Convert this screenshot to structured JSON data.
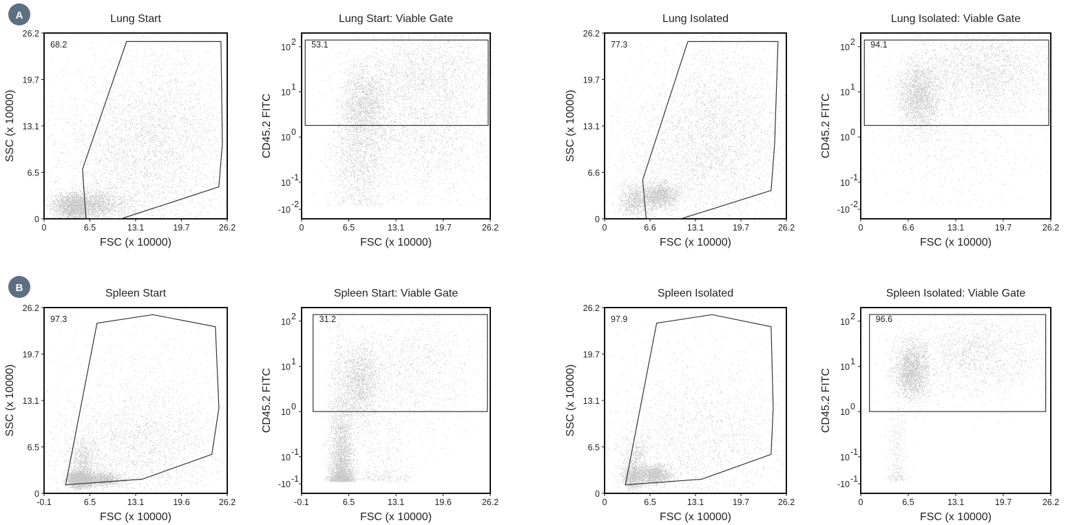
{
  "panel_labels": [
    "A",
    "B"
  ],
  "colors": {
    "badge": "#5d7081",
    "axis": "#111111",
    "gate": "#333333",
    "dots": "#000000"
  },
  "chart_data": [
    {
      "type": "scatter",
      "title": "Lung Start",
      "xlabel": "FSC (x 10000)",
      "ylabel": "SSC (x 10000)",
      "xscale": "linear",
      "yscale": "linear",
      "xlim": [
        0,
        26.2
      ],
      "ylim": [
        0,
        26.2
      ],
      "xticks": [
        "0",
        "6.5",
        "13.1",
        "19.7",
        "26.2"
      ],
      "yticks": [
        "0",
        "6.5",
        "13.1",
        "19.7",
        "26.2"
      ],
      "gate": {
        "shape": "polygon",
        "percent": "68.2",
        "vertices": [
          [
            6.0,
            0
          ],
          [
            11.0,
            0
          ],
          [
            25.0,
            4.5
          ],
          [
            25.5,
            10.5
          ],
          [
            25.3,
            25.0
          ],
          [
            11.8,
            25.0
          ],
          [
            5.5,
            7.0
          ]
        ]
      },
      "populations": [
        {
          "x": 6.2,
          "y": 2.0,
          "sx": 2.8,
          "sy": 1.1,
          "n": 2200
        },
        {
          "x": 4.0,
          "y": 1.6,
          "sx": 1.2,
          "sy": 0.9,
          "n": 1200
        },
        {
          "x": 13.5,
          "y": 9.0,
          "sx": 6.5,
          "sy": 5.5,
          "n": 2800
        },
        {
          "x": 17.0,
          "y": 14.0,
          "sx": 5.0,
          "sy": 7.0,
          "n": 1600
        }
      ]
    },
    {
      "type": "scatter",
      "title": "Lung Start: Viable Gate",
      "xlabel": "FSC (x 10000)",
      "ylabel": "CD45.2 FITC",
      "xscale": "linear",
      "yscale": "logicle",
      "xlim": [
        0,
        26.2
      ],
      "ylim": [
        -0.02,
        200
      ],
      "xticks": [
        "0",
        "6.5",
        "13.1",
        "19.7",
        "26.2"
      ],
      "yticks": [
        {
          "base": "10",
          "exp": "2"
        },
        {
          "base": "10",
          "exp": "1"
        },
        {
          "base": "10",
          "exp": "0"
        },
        {
          "base": "10",
          "exp": "-1"
        },
        {
          "base": "-10",
          "exp": "-2"
        }
      ],
      "gate": {
        "shape": "rectangle",
        "percent": "53.1",
        "x_range": [
          0.5,
          26.2
        ],
        "y_range": [
          1.8,
          140
        ]
      },
      "populations": [
        {
          "x": 8.5,
          "y": 6.0,
          "sx": 1.6,
          "sy": 0.18,
          "n": 1500
        },
        {
          "x": 17.0,
          "y": 30.0,
          "sx": 5.0,
          "sy": 0.25,
          "n": 2000
        },
        {
          "x": 8.0,
          "y": 0.35,
          "sx": 2.0,
          "sy": 0.3,
          "n": 1600
        },
        {
          "x": 17.0,
          "y": 1.2,
          "sx": 5.0,
          "sy": 0.3,
          "n": 1800
        }
      ]
    },
    {
      "type": "scatter",
      "title": "Lung Isolated",
      "xlabel": "FSC (x 10000)",
      "ylabel": "SSC (x 10000)",
      "xscale": "linear",
      "yscale": "linear",
      "xlim": [
        0,
        26.2
      ],
      "ylim": [
        0,
        26.2
      ],
      "xticks": [
        "0",
        "6.6",
        "13.1",
        "19.7",
        "26.2"
      ],
      "yticks": [
        "0",
        "6.6",
        "13.1",
        "19.7",
        "26.2"
      ],
      "gate": {
        "shape": "polygon",
        "percent": "77.3",
        "vertices": [
          [
            6.0,
            0
          ],
          [
            11.0,
            0
          ],
          [
            24.0,
            4.0
          ],
          [
            24.5,
            10.5
          ],
          [
            25.0,
            25.0
          ],
          [
            12.0,
            25.0
          ],
          [
            5.5,
            5.5
          ]
        ]
      },
      "populations": [
        {
          "x": 8.0,
          "y": 3.3,
          "sx": 1.3,
          "sy": 0.9,
          "n": 1300
        },
        {
          "x": 4.5,
          "y": 2.5,
          "sx": 1.3,
          "sy": 1.2,
          "n": 900
        },
        {
          "x": 14.0,
          "y": 9.0,
          "sx": 6.0,
          "sy": 5.5,
          "n": 2600
        },
        {
          "x": 17.0,
          "y": 15.0,
          "sx": 5.0,
          "sy": 6.5,
          "n": 1500
        }
      ]
    },
    {
      "type": "scatter",
      "title": "Lung Isolated: Viable Gate",
      "xlabel": "FSC (x 10000)",
      "ylabel": "CD45.2 FITC",
      "xscale": "linear",
      "yscale": "logicle",
      "xlim": [
        0,
        26.2
      ],
      "ylim": [
        -0.02,
        200
      ],
      "xticks": [
        "0",
        "6.6",
        "13.1",
        "19.7",
        "26.2"
      ],
      "yticks": [
        {
          "base": "10",
          "exp": "2"
        },
        {
          "base": "10",
          "exp": "1"
        },
        {
          "base": "10",
          "exp": "0"
        },
        {
          "base": "10",
          "exp": "-1"
        },
        {
          "base": "-10",
          "exp": "-2"
        }
      ],
      "gate": {
        "shape": "rectangle",
        "percent": "94.1",
        "x_range": [
          0.5,
          26.2
        ],
        "y_range": [
          1.8,
          140
        ]
      },
      "populations": [
        {
          "x": 8.0,
          "y": 8.0,
          "sx": 1.5,
          "sy": 0.18,
          "n": 2200
        },
        {
          "x": 17.0,
          "y": 30.0,
          "sx": 5.0,
          "sy": 0.22,
          "n": 2600
        },
        {
          "x": 13.0,
          "y": 0.5,
          "sx": 5.0,
          "sy": 0.3,
          "n": 500
        }
      ]
    },
    {
      "type": "scatter",
      "title": "Spleen Start",
      "xlabel": "FSC (x 10000)",
      "ylabel": "SSC (x 10000)",
      "xscale": "linear",
      "yscale": "linear",
      "xlim": [
        -0.1,
        26.2
      ],
      "ylim": [
        0,
        26.2
      ],
      "xticks": [
        "-0.1",
        "6.5",
        "13.1",
        "19.6",
        "26.2"
      ],
      "yticks": [
        "0",
        "6.5",
        "13.1",
        "19.7",
        "26.2"
      ],
      "gate": {
        "shape": "polygon",
        "percent": "97.3",
        "vertices": [
          [
            3.0,
            1.2
          ],
          [
            14.0,
            2.0
          ],
          [
            24.0,
            5.5
          ],
          [
            25.0,
            12.0
          ],
          [
            24.5,
            23.5
          ],
          [
            15.5,
            25.2
          ],
          [
            7.5,
            24.0
          ]
        ]
      },
      "populations": [
        {
          "x": 5.0,
          "y": 2.0,
          "sx": 0.9,
          "sy": 0.6,
          "n": 2200
        },
        {
          "x": 8.5,
          "y": 2.0,
          "sx": 1.3,
          "sy": 0.5,
          "n": 1000
        },
        {
          "x": 5.5,
          "y": 4.5,
          "sx": 1.0,
          "sy": 1.6,
          "n": 700
        },
        {
          "x": 13.0,
          "y": 6.0,
          "sx": 6.5,
          "sy": 4.0,
          "n": 2000
        },
        {
          "x": 14.0,
          "y": 12.0,
          "sx": 7.0,
          "sy": 6.0,
          "n": 900
        }
      ]
    },
    {
      "type": "scatter",
      "title": "Spleen Start: Viable Gate",
      "xlabel": "FSC (x 10000)",
      "ylabel": "CD45.2 FITC",
      "xscale": "linear",
      "yscale": "logicle",
      "xlim": [
        -0.1,
        26.2
      ],
      "ylim": [
        -0.02,
        200
      ],
      "xticks": [
        "-0.1",
        "6.5",
        "13.1",
        "19.6",
        "26.2"
      ],
      "yticks": [
        {
          "base": "10",
          "exp": "2"
        },
        {
          "base": "10",
          "exp": "1"
        },
        {
          "base": "10",
          "exp": "0"
        },
        {
          "base": "10",
          "exp": "-1"
        },
        {
          "base": "-10",
          "exp": "-1"
        }
      ],
      "gate": {
        "shape": "rectangle",
        "percent": "31.2",
        "x_range": [
          1.5,
          25.8
        ],
        "y_range": [
          1.0,
          140
        ]
      },
      "populations": [
        {
          "x": 5.5,
          "y": 0.06,
          "sx": 0.9,
          "sy": 0.3,
          "n": 2600
        },
        {
          "x": 5.0,
          "y": 1.0,
          "sx": 0.8,
          "sy": 0.5,
          "n": 500
        },
        {
          "x": 8.0,
          "y": 4.5,
          "sx": 1.4,
          "sy": 0.2,
          "n": 1700
        },
        {
          "x": 15.0,
          "y": 8.0,
          "sx": 4.5,
          "sy": 0.3,
          "n": 1300
        },
        {
          "x": 11.5,
          "y": 0.06,
          "sx": 2.0,
          "sy": 0.3,
          "n": 400
        }
      ]
    },
    {
      "type": "scatter",
      "title": "Spleen Isolated",
      "xlabel": "FSC (x 10000)",
      "ylabel": "SSC (x 10000)",
      "xscale": "linear",
      "yscale": "linear",
      "xlim": [
        0,
        26.2
      ],
      "ylim": [
        0,
        26.2
      ],
      "xticks": [
        "0",
        "6.5",
        "13.1",
        "19.7",
        "26.2"
      ],
      "yticks": [
        "0",
        "6.5",
        "13.1",
        "19.7",
        "26.2"
      ],
      "gate": {
        "shape": "polygon",
        "percent": "97.9",
        "vertices": [
          [
            3.0,
            1.2
          ],
          [
            14.0,
            2.0
          ],
          [
            24.0,
            5.5
          ],
          [
            24.3,
            12.0
          ],
          [
            24.0,
            23.5
          ],
          [
            15.5,
            25.2
          ],
          [
            7.5,
            24.0
          ]
        ]
      },
      "populations": [
        {
          "x": 7.0,
          "y": 2.6,
          "sx": 1.3,
          "sy": 0.7,
          "n": 1400
        },
        {
          "x": 4.0,
          "y": 2.3,
          "sx": 0.8,
          "sy": 0.9,
          "n": 800
        },
        {
          "x": 4.5,
          "y": 5.0,
          "sx": 0.9,
          "sy": 1.6,
          "n": 400
        },
        {
          "x": 13.0,
          "y": 6.5,
          "sx": 6.5,
          "sy": 4.5,
          "n": 1500
        },
        {
          "x": 14.0,
          "y": 13.0,
          "sx": 7.0,
          "sy": 6.0,
          "n": 700
        }
      ]
    },
    {
      "type": "scatter",
      "title": "Spleen Isolated: Viable Gate",
      "xlabel": "FSC (x 10000)",
      "ylabel": "CD45.2 FITC",
      "xscale": "linear",
      "yscale": "logicle",
      "xlim": [
        0,
        26.2
      ],
      "ylim": [
        -0.02,
        200
      ],
      "xticks": [
        "0",
        "6.5",
        "13.1",
        "19.7",
        "26.2"
      ],
      "yticks": [
        {
          "base": "10",
          "exp": "2"
        },
        {
          "base": "10",
          "exp": "1"
        },
        {
          "base": "10",
          "exp": "0"
        },
        {
          "base": "10",
          "exp": "-1"
        },
        {
          "base": "-10",
          "exp": "-1"
        }
      ],
      "gate": {
        "shape": "rectangle",
        "percent": "96.6",
        "x_range": [
          1.2,
          25.5
        ],
        "y_range": [
          1.0,
          140
        ]
      },
      "populations": [
        {
          "x": 7.0,
          "y": 8.0,
          "sx": 1.2,
          "sy": 0.15,
          "n": 2200
        },
        {
          "x": 16.0,
          "y": 20.0,
          "sx": 5.0,
          "sy": 0.2,
          "n": 1800
        },
        {
          "x": 5.0,
          "y": 0.1,
          "sx": 0.7,
          "sy": 0.3,
          "n": 300
        }
      ]
    }
  ]
}
